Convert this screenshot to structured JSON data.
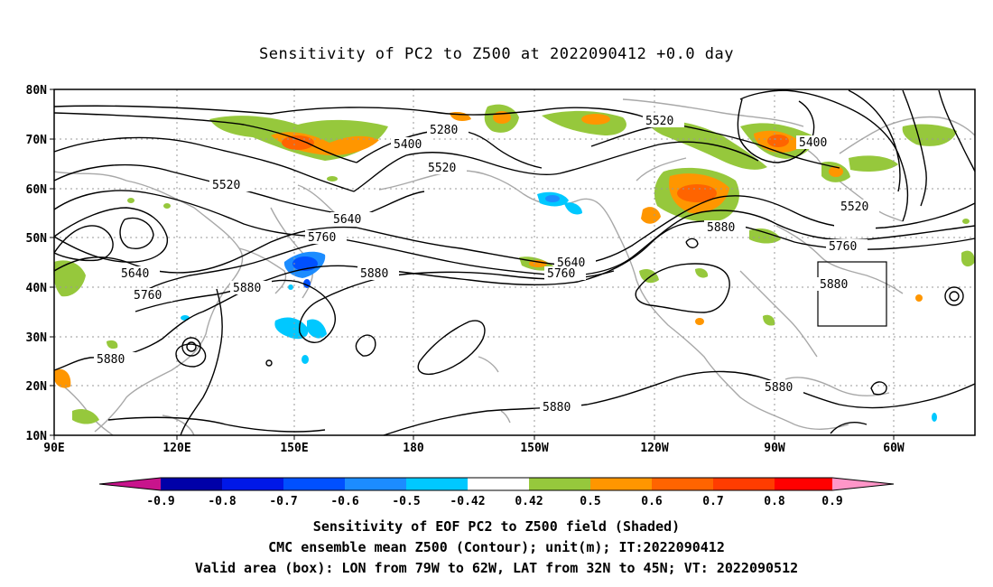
{
  "title": "Sensitivity of PC2 to Z500 at 2022090412 +0.0 day",
  "lat_labels": [
    "80N",
    "70N",
    "60N",
    "50N",
    "40N",
    "30N",
    "20N",
    "10N"
  ],
  "lon_labels": [
    "90E",
    "120E",
    "150E",
    "180",
    "150W",
    "120W",
    "90W",
    "60W"
  ],
  "contour_labels": {
    "c5280": "5280",
    "c5400a": "5400",
    "c5400b": "5400",
    "c5520a": "5520",
    "c5520b": "5520",
    "c5520c": "5520",
    "c5520d": "5520",
    "c5640a": "5640",
    "c5640b": "5640",
    "c5640c": "5640",
    "c5760a": "5760",
    "c5760b": "5760",
    "c5760c": "5760",
    "c5760d": "5760",
    "c5880a": "5880",
    "c5880b": "5880",
    "c5880c": "5880",
    "c5880d": "5880",
    "c5880e": "5880",
    "c5880f": "5880",
    "c5880g": "5880"
  },
  "colorbar": {
    "labels": [
      "-0.9",
      "-0.8",
      "-0.7",
      "-0.6",
      "-0.5",
      "-0.42",
      "0.42",
      "0.5",
      "0.6",
      "0.7",
      "0.8",
      "0.9"
    ],
    "colors": [
      "#0000a8",
      "#0018e8",
      "#0050ff",
      "#1c8cff",
      "#00c8ff",
      "#ffffff",
      "#96c83c",
      "#ff9600",
      "#ff6400",
      "#ff3c00",
      "#ff0000"
    ],
    "low_end_color": "#c8148c",
    "high_end_color": "#ff96c8"
  },
  "captions": {
    "line1": "Sensitivity of EOF PC2 to Z500 field (Shaded)",
    "line2": "CMC ensemble mean Z500 (Contour); unit(m); IT:2022090412",
    "line3": "Valid area (box): LON from 79W to 62W, LAT from 32N to 45N; VT: 2022090512"
  }
}
